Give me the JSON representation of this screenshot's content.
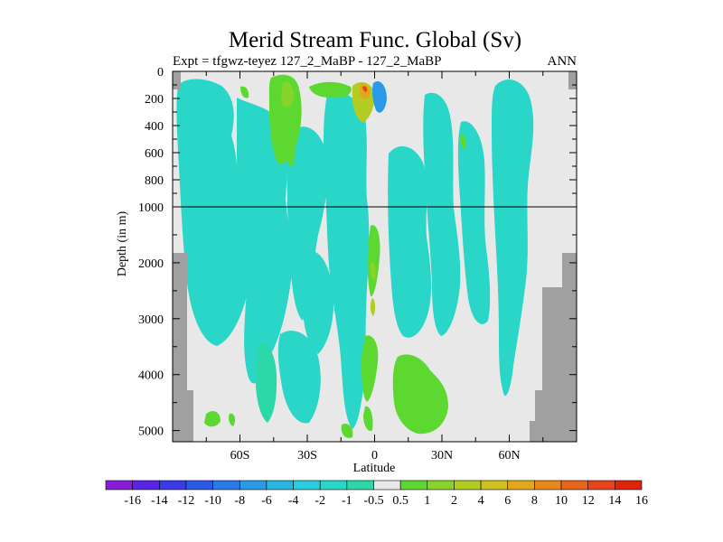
{
  "chart_data": {
    "type": "heatmap",
    "title": "Merid Stream Func. Global (Sv)",
    "subtitle_left": "Expt = tfgwz-teyez   127_2_MaBP - 127_2_MaBP",
    "subtitle_right": "ANN",
    "xlabel": "Latitude",
    "ylabel": "Depth (in m)",
    "x_ticks": [
      "60S",
      "30S",
      "0",
      "30N",
      "60N"
    ],
    "x_tick_values": [
      -60,
      -30,
      0,
      30,
      60
    ],
    "xlim": [
      -90,
      90
    ],
    "y_upper_ticks": [
      "0",
      "200",
      "400",
      "600",
      "800",
      "1000"
    ],
    "y_upper_values": [
      0,
      200,
      400,
      600,
      800,
      1000
    ],
    "y_lower_ticks": [
      "2000",
      "3000",
      "4000",
      "5000"
    ],
    "y_lower_values": [
      2000,
      3000,
      4000,
      5000
    ],
    "ylim_upper": [
      0,
      1000
    ],
    "ylim_lower": [
      1000,
      5200
    ],
    "colorbar_labels": [
      "-16",
      "-14",
      "-12",
      "-10",
      "-8",
      "-6",
      "-4",
      "-2",
      "-1",
      "-0.5",
      "0.5",
      "1",
      "2",
      "4",
      "6",
      "8",
      "10",
      "12",
      "14",
      "16"
    ],
    "colorbar_colors": [
      "#8a1cd8",
      "#5a24e8",
      "#3a3ae8",
      "#2a5ae8",
      "#2a7ae8",
      "#2a9ae8",
      "#2ab4e0",
      "#2acce0",
      "#2ad6c8",
      "#2cd8a8",
      "#e8e8e8",
      "#5cd830",
      "#86d42a",
      "#b2cc22",
      "#cfc21e",
      "#e2a81c",
      "#e8881c",
      "#e8661c",
      "#e8441c",
      "#e0240a"
    ],
    "land_color": "#a0a0a0",
    "fill_color": "#e8e8e8"
  }
}
